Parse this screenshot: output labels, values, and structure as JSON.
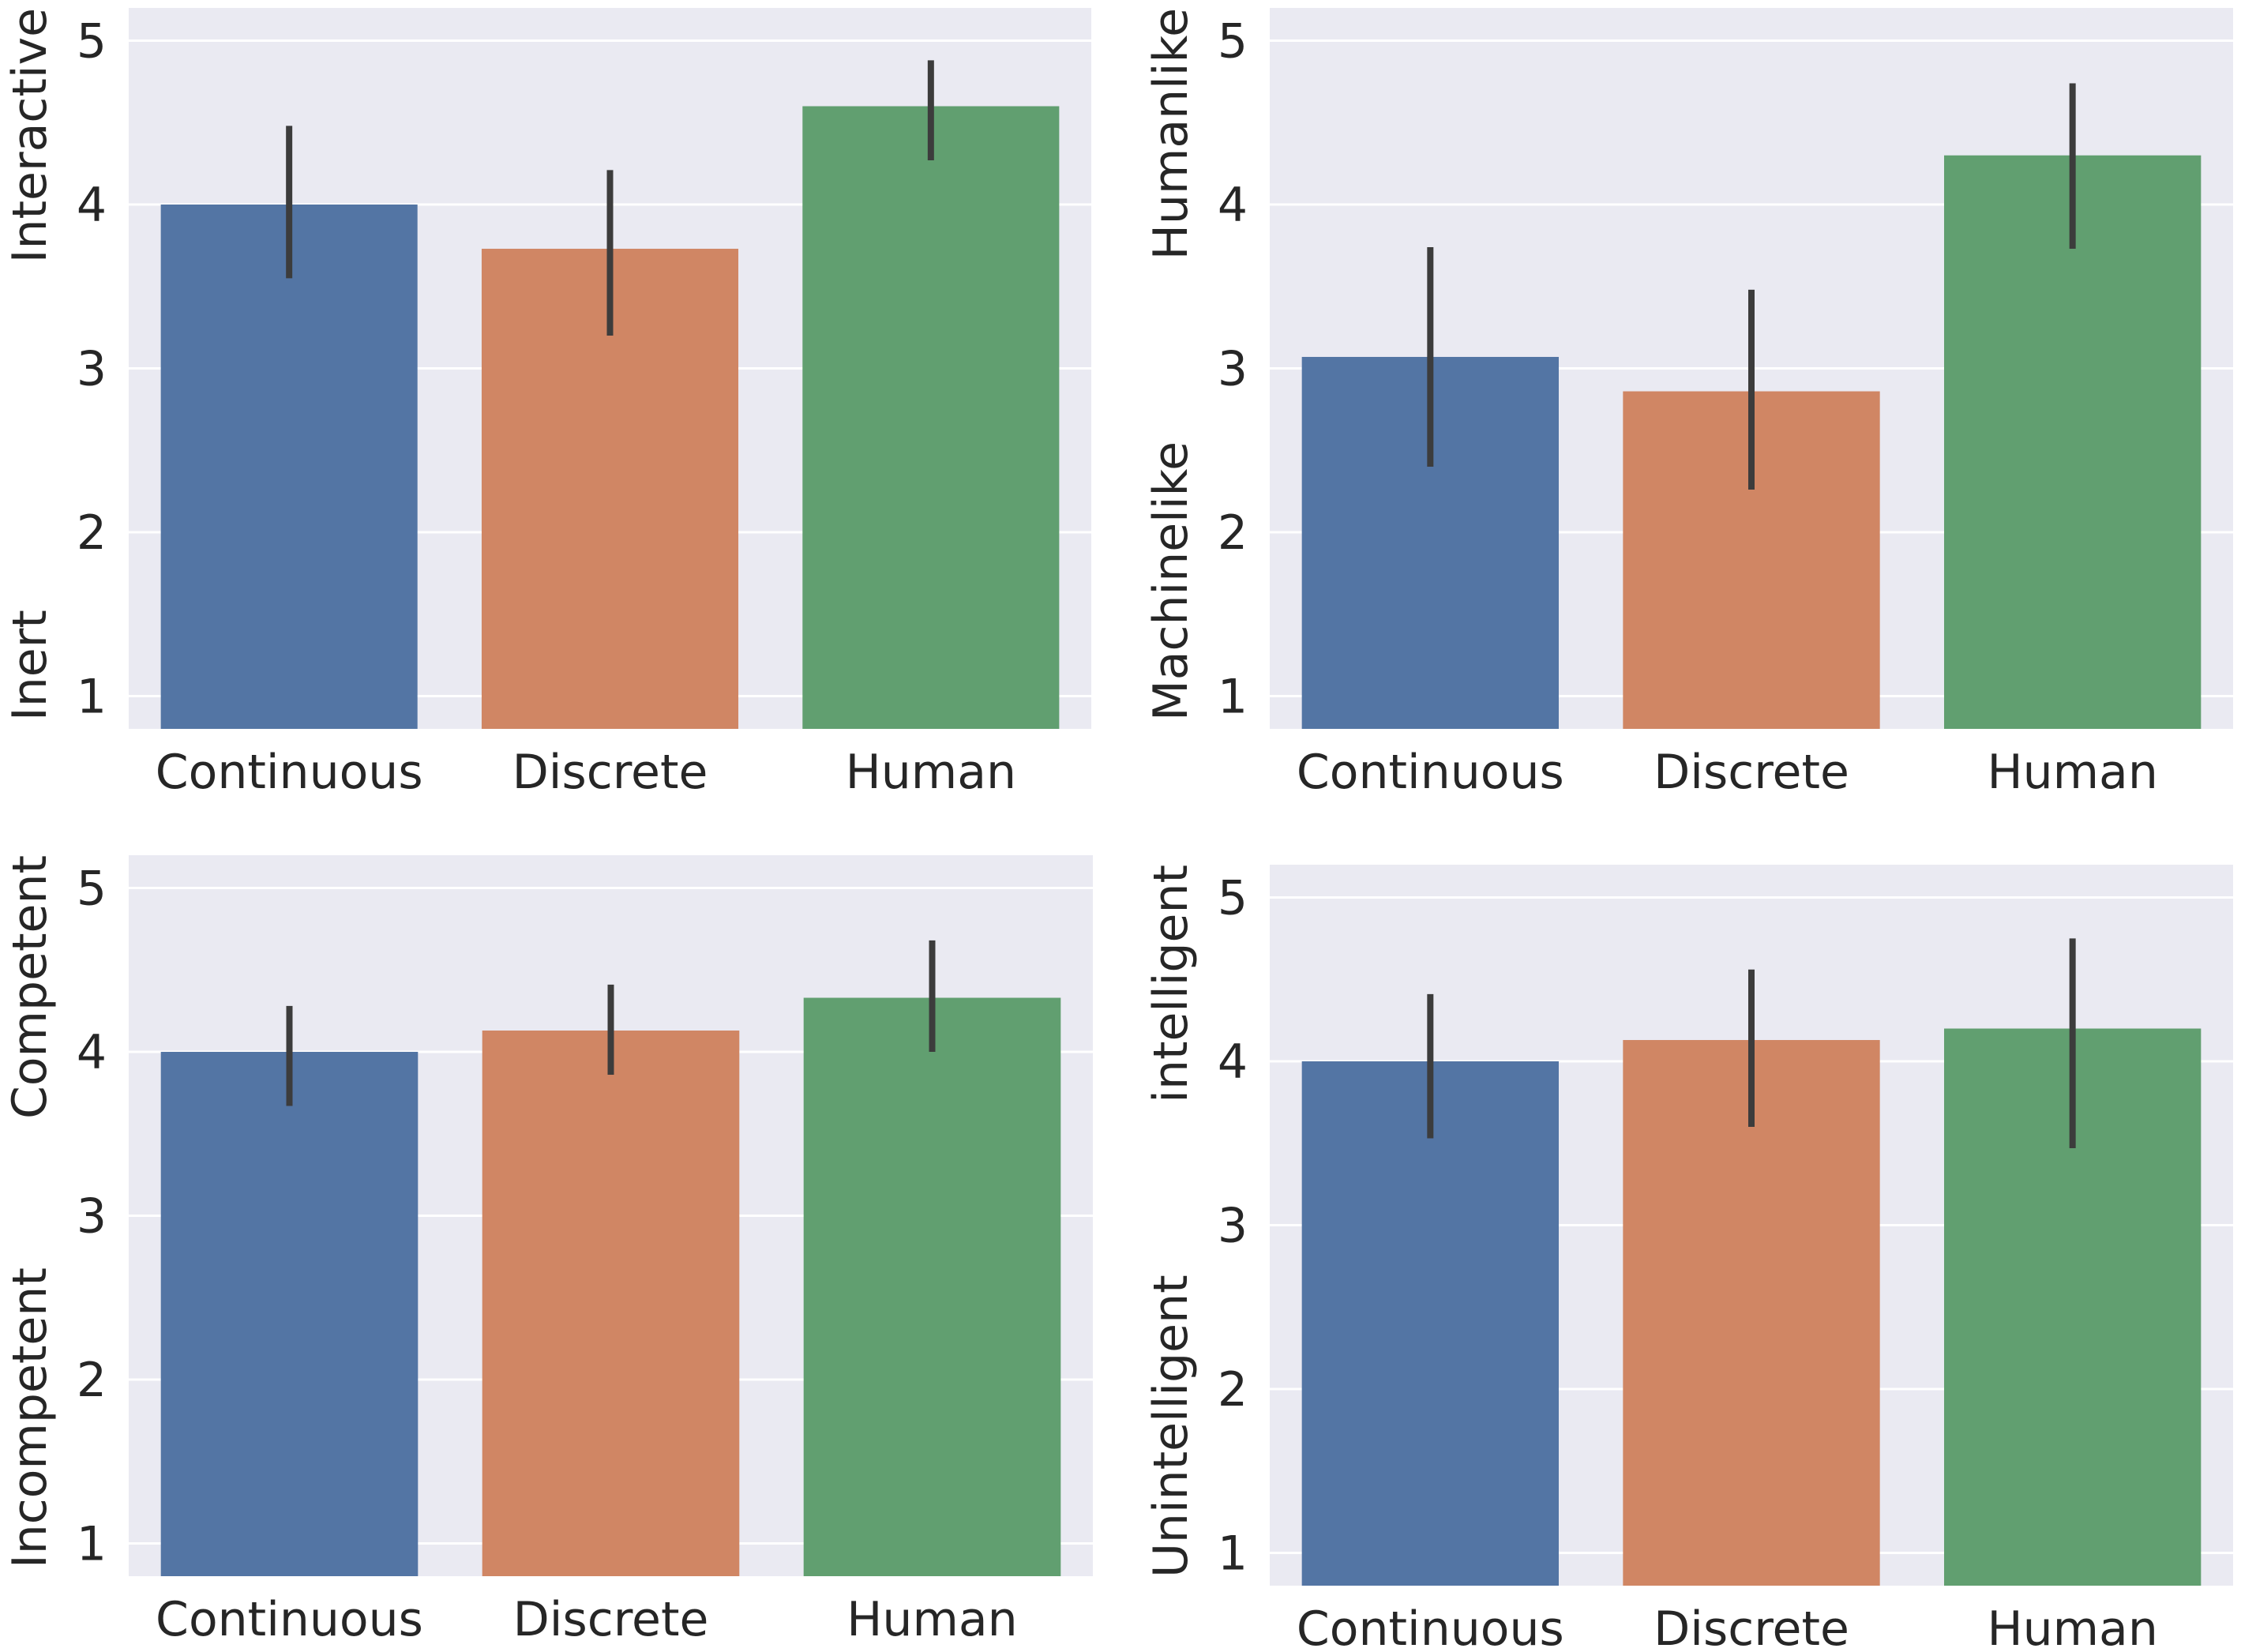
{
  "chart_data": [
    {
      "type": "bar",
      "categories": [
        "Continuous",
        "Discrete",
        "Human"
      ],
      "values": [
        4.0,
        3.73,
        4.6
      ],
      "error_bars": [
        [
          3.55,
          4.48
        ],
        [
          3.2,
          4.21
        ],
        [
          4.27,
          4.88
        ]
      ],
      "ylabel_low": "Inert",
      "ylabel_high": "Interactive",
      "yticks": [
        1,
        2,
        3,
        4,
        5
      ],
      "ylim": [
        0.8,
        5.2
      ],
      "grid": true
    },
    {
      "type": "bar",
      "categories": [
        "Continuous",
        "Discrete",
        "Human"
      ],
      "values": [
        3.07,
        2.86,
        4.3
      ],
      "error_bars": [
        [
          2.4,
          3.74
        ],
        [
          2.26,
          3.48
        ],
        [
          3.73,
          4.74
        ]
      ],
      "ylabel_low": "Machinelike",
      "ylabel_high": "Humanlike",
      "yticks": [
        1,
        2,
        3,
        4,
        5
      ],
      "ylim": [
        0.8,
        5.2
      ],
      "grid": true
    },
    {
      "type": "bar",
      "categories": [
        "Continuous",
        "Discrete",
        "Human"
      ],
      "values": [
        4.0,
        4.13,
        4.33
      ],
      "error_bars": [
        [
          3.67,
          4.28
        ],
        [
          3.86,
          4.41
        ],
        [
          4.0,
          4.68
        ]
      ],
      "ylabel_low": "Incompetent",
      "ylabel_high": "Competent",
      "yticks": [
        1,
        2,
        3,
        4,
        5
      ],
      "ylim": [
        0.8,
        5.2
      ],
      "grid": true
    },
    {
      "type": "bar",
      "categories": [
        "Continuous",
        "Discrete",
        "Human"
      ],
      "values": [
        4.0,
        4.13,
        4.2
      ],
      "error_bars": [
        [
          3.53,
          4.41
        ],
        [
          3.6,
          4.56
        ],
        [
          3.47,
          4.75
        ]
      ],
      "ylabel_low": "Unintelligent",
      "ylabel_high": "intelligent",
      "yticks": [
        1,
        2,
        3,
        4,
        5
      ],
      "ylim": [
        0.8,
        5.2
      ],
      "grid": true
    }
  ],
  "colors": {
    "background": "#eaeaf2",
    "grid": "#ffffff",
    "bars": [
      "#5375a4",
      "#d08664",
      "#619f70"
    ],
    "error_bar": "#3c3c3c",
    "text": "#262626"
  }
}
